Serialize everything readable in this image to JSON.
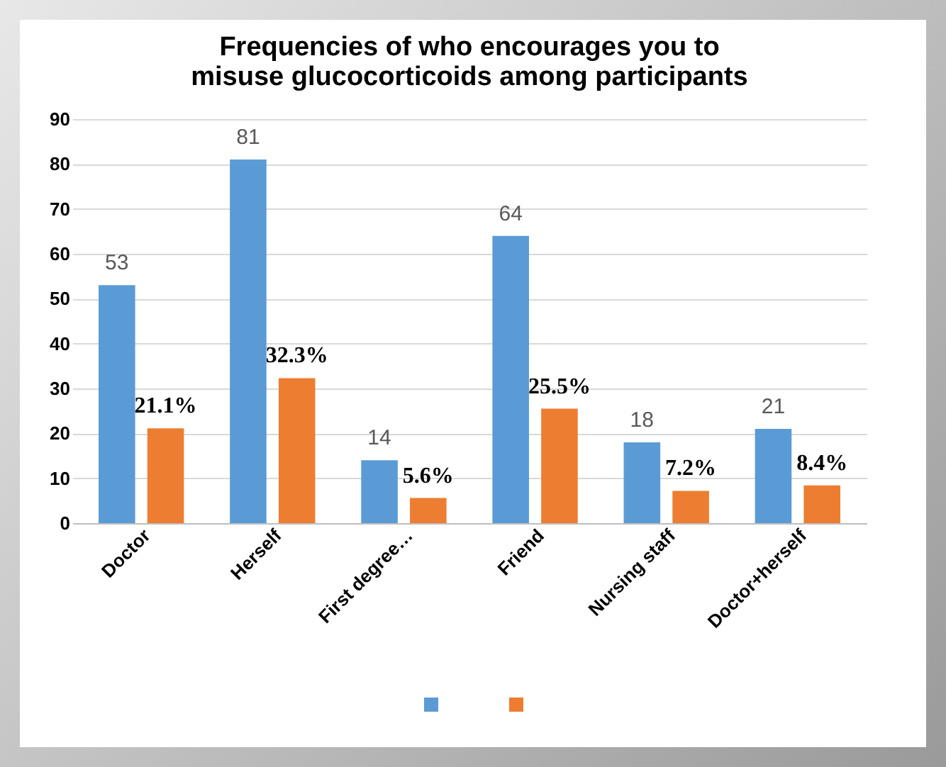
{
  "chart_data": {
    "type": "bar",
    "title": "Frequencies of  who encourages you to misuse glucocorticoids among participants",
    "categories": [
      "Doctor",
      "Herself",
      "First degree…",
      "Friend",
      "Nursing staff",
      "Doctor+herself"
    ],
    "series": [
      {
        "color": "#5b9bd5",
        "values": [
          53,
          81,
          14,
          64,
          18,
          21
        ],
        "value_labels": [
          "53",
          "81",
          "14",
          "64",
          "18",
          "21"
        ]
      },
      {
        "color": "#ed7d31",
        "values": [
          21.1,
          32.3,
          5.6,
          25.5,
          7.2,
          8.4
        ],
        "value_labels": [
          "21.1%",
          "32.3%",
          "5.6%",
          "25.5%",
          "7.2%",
          "8.4%"
        ]
      }
    ],
    "ylim": [
      0,
      90
    ],
    "yticks": [
      0,
      10,
      20,
      30,
      40,
      50,
      60,
      70,
      80,
      90
    ],
    "grid": "y"
  }
}
